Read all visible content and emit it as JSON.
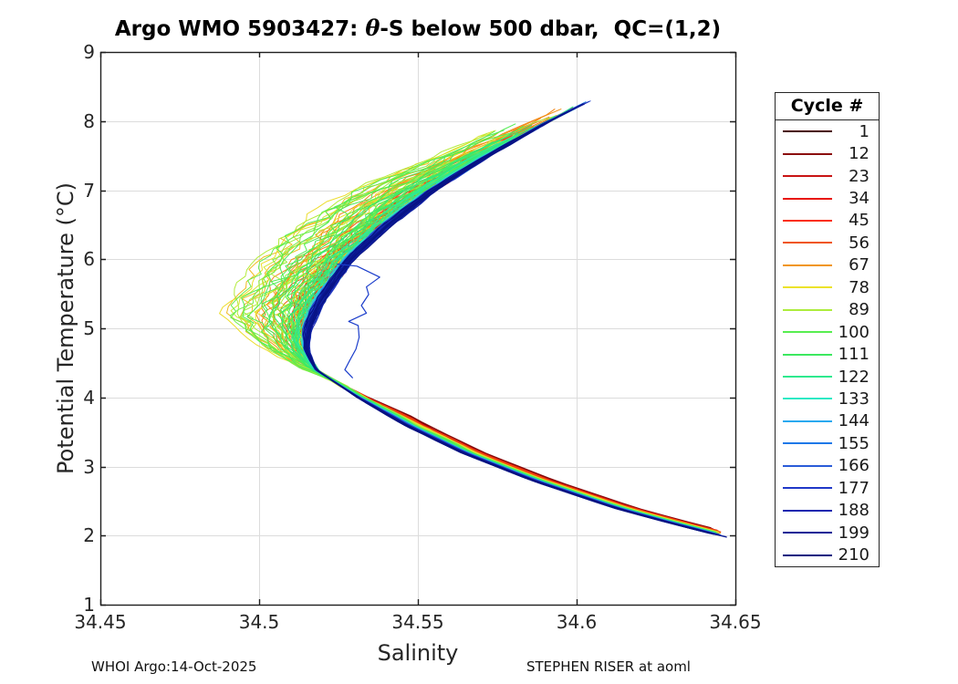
{
  "title": {
    "prefix": "Argo WMO 5903427: ",
    "theta": "θ",
    "suffix": "-S below 500 dbar,  QC=(1,2)"
  },
  "footer": {
    "left": "WHOI Argo:14-Oct-2025",
    "right": "STEPHEN RISER at aoml"
  },
  "chart_data": {
    "type": "line",
    "title": "Argo WMO 5903427: θ-S below 500 dbar,  QC=(1,2)",
    "xlabel": "Salinity",
    "ylabel": "Potential Temperature (°C)",
    "xlim": [
      34.45,
      34.65
    ],
    "ylim": [
      1,
      9
    ],
    "xticks": [
      34.45,
      34.5,
      34.55,
      34.6,
      34.65
    ],
    "xtick_labels": [
      "34.45",
      "34.5",
      "34.55",
      "34.6",
      "34.65"
    ],
    "yticks": [
      1,
      2,
      3,
      4,
      5,
      6,
      7,
      8,
      9
    ],
    "ytick_labels": [
      "1",
      "2",
      "3",
      "4",
      "5",
      "6",
      "7",
      "8",
      "9"
    ],
    "grid": true,
    "grid_color": "#dcdcdc",
    "axis_color": "#1f1f1f",
    "n_cycles": 210,
    "legend": {
      "title": "Cycle #",
      "entries": [
        {
          "label": "1",
          "color": "#4a0505"
        },
        {
          "label": "12",
          "color": "#8b0b0b"
        },
        {
          "label": "23",
          "color": "#c81414"
        },
        {
          "label": "34",
          "color": "#e81309"
        },
        {
          "label": "45",
          "color": "#fb2e0a"
        },
        {
          "label": "56",
          "color": "#f0550f"
        },
        {
          "label": "67",
          "color": "#f19617"
        },
        {
          "label": "78",
          "color": "#ece32b"
        },
        {
          "label": "89",
          "color": "#adec3d"
        },
        {
          "label": "100",
          "color": "#57ee50"
        },
        {
          "label": "111",
          "color": "#3ce85f"
        },
        {
          "label": "122",
          "color": "#2ee98e"
        },
        {
          "label": "133",
          "color": "#2de9c4"
        },
        {
          "label": "144",
          "color": "#2aa9ef"
        },
        {
          "label": "155",
          "color": "#1e78e8"
        },
        {
          "label": "166",
          "color": "#2a5cd8"
        },
        {
          "label": "177",
          "color": "#2038c8"
        },
        {
          "label": "188",
          "color": "#1527b0"
        },
        {
          "label": "199",
          "color": "#0c1a96"
        },
        {
          "label": "210",
          "color": "#071180"
        }
      ]
    },
    "base_profile": {
      "theta": [
        8.35,
        8.0,
        7.5,
        7.0,
        6.5,
        6.0,
        5.5,
        5.0,
        4.7,
        4.4,
        4.0,
        3.6,
        3.2,
        2.8,
        2.4,
        2.2,
        2.0,
        1.9
      ],
      "salinity": [
        34.607,
        34.592,
        34.573,
        34.556,
        34.542,
        34.53,
        34.522,
        34.5165,
        34.5155,
        34.518,
        34.531,
        34.546,
        34.564,
        34.586,
        34.612,
        34.628,
        34.645,
        34.656
      ]
    },
    "fan": {
      "salinity_min": 34.488,
      "fan_theta_range": [
        4.3,
        7.9
      ],
      "fresh_shift_max": 0.0305,
      "mid_bump_center_t": 0.43,
      "mid_bump_width_left": 0.2,
      "mid_bump_width_right": 0.12,
      "lower_limb_early_salty_shift": 0.007,
      "noise_amp_base": 0.0005,
      "noise_amp_mid": 0.0042
    },
    "outlier": {
      "color": "#1c3ecb",
      "theta": [
        5.93,
        5.9,
        5.74,
        5.6,
        5.49,
        5.33,
        5.22,
        5.1,
        5.04,
        4.87,
        4.7,
        4.54,
        4.4,
        4.28
      ],
      "salinity": [
        34.5245,
        34.5308,
        34.538,
        34.5338,
        34.5345,
        34.5322,
        34.5338,
        34.5282,
        34.5312,
        34.5315,
        34.5305,
        34.5286,
        34.527,
        34.5295
      ]
    }
  }
}
